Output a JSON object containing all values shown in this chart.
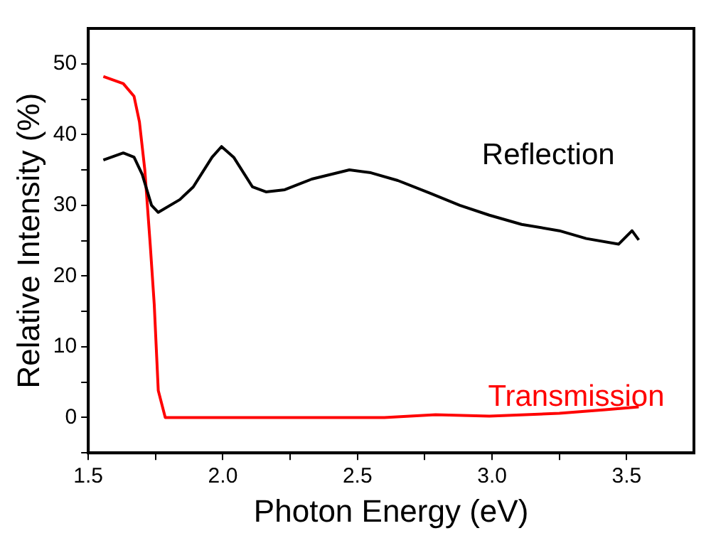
{
  "chart_data": {
    "type": "line",
    "xlabel": "Photon Energy (eV)",
    "ylabel": "Relative Intensity (%)",
    "xlim": [
      1.5,
      3.75
    ],
    "xticks": [
      1.5,
      {
        "value": 1.75,
        "label": null
      },
      {
        "value": 2,
        "label": "2.0"
      },
      {
        "value": 2.25,
        "label": null
      },
      2.5,
      {
        "value": 2.75,
        "label": null
      },
      {
        "value": 3,
        "label": "3.0"
      },
      {
        "value": 3.25,
        "label": null
      },
      3.5
    ],
    "ylim": [
      -5,
      55
    ],
    "yticks": [
      {
        "value": -5,
        "label": null
      },
      0,
      {
        "value": 5,
        "label": null
      },
      10,
      {
        "value": 15,
        "label": null
      },
      20,
      {
        "value": 25,
        "label": null
      },
      30,
      {
        "value": 35,
        "label": null
      },
      40,
      {
        "value": 45,
        "label": null
      },
      50
    ],
    "grid": false,
    "legend": false,
    "marker": "none",
    "line_style": "solid",
    "series": [
      {
        "name": "Reflection",
        "color": "#000000",
        "x": [
          1.556,
          1.63,
          1.67,
          1.7,
          1.735,
          1.76,
          1.84,
          1.89,
          1.96,
          1.995,
          2.04,
          2.11,
          2.16,
          2.23,
          2.33,
          2.47,
          2.55,
          2.65,
          2.77,
          2.88,
          2.99,
          3.11,
          3.25,
          3.35,
          3.47,
          3.52,
          3.545
        ],
        "values": [
          36.4,
          37.4,
          36.8,
          34.4,
          30.0,
          29.0,
          30.8,
          32.6,
          36.8,
          38.3,
          36.8,
          32.6,
          31.9,
          32.2,
          33.7,
          35.0,
          34.6,
          33.5,
          31.7,
          30.0,
          28.6,
          27.3,
          26.4,
          25.3,
          24.5,
          26.4,
          25.1
        ]
      },
      {
        "name": "Transmission",
        "color": "#ff0000",
        "x": [
          1.556,
          1.63,
          1.67,
          1.69,
          1.71,
          1.73,
          1.745,
          1.76,
          1.786,
          2.0,
          2.3,
          2.6,
          2.79,
          2.99,
          3.25,
          3.42,
          3.545
        ],
        "values": [
          48.2,
          47.2,
          45.4,
          41.8,
          35.0,
          24.5,
          16.0,
          3.8,
          0.0,
          0.0,
          0.0,
          0.0,
          0.4,
          0.2,
          0.6,
          1.1,
          1.5
        ]
      }
    ]
  }
}
